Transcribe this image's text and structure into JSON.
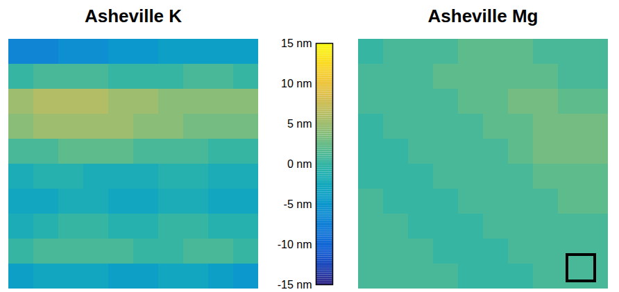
{
  "chart_data": {
    "type": "heatmap",
    "panels": [
      {
        "title": "Asheville K",
        "cells": [
          [
            -7,
            -7,
            -6,
            -6,
            -5,
            -5,
            -4,
            -4,
            -4,
            -4
          ],
          [
            0,
            1,
            1,
            1,
            0,
            0,
            0,
            1,
            1,
            0
          ],
          [
            5,
            6,
            6,
            6,
            5,
            5,
            4,
            4,
            4,
            4
          ],
          [
            4,
            5,
            5,
            5,
            5,
            4,
            4,
            3,
            3,
            3
          ],
          [
            1,
            1,
            2,
            2,
            2,
            1,
            1,
            1,
            0,
            0
          ],
          [
            -2,
            -1,
            -1,
            -2,
            -2,
            -2,
            -1,
            -1,
            -2,
            -2
          ],
          [
            -3,
            -3,
            -2,
            -2,
            -3,
            -3,
            -2,
            -2,
            -3,
            -3
          ],
          [
            -2,
            -1,
            0,
            0,
            -1,
            -1,
            0,
            0,
            -1,
            -1
          ],
          [
            0,
            1,
            1,
            1,
            1,
            0,
            0,
            1,
            1,
            0
          ],
          [
            -4,
            -3,
            -3,
            -3,
            -4,
            -4,
            -3,
            -3,
            -4,
            -5
          ]
        ]
      },
      {
        "title": "Asheville Mg",
        "cells": [
          [
            0,
            1,
            1,
            1,
            2,
            2,
            2,
            1,
            1,
            1
          ],
          [
            1,
            1,
            1,
            2,
            2,
            2,
            2,
            2,
            1,
            1
          ],
          [
            1,
            1,
            1,
            1,
            2,
            2,
            3,
            3,
            2,
            2
          ],
          [
            0,
            1,
            1,
            1,
            1,
            2,
            2,
            3,
            3,
            3
          ],
          [
            0,
            0,
            1,
            1,
            1,
            1,
            2,
            3,
            3,
            3
          ],
          [
            0,
            0,
            0,
            1,
            1,
            1,
            1,
            2,
            2,
            2
          ],
          [
            1,
            0,
            0,
            0,
            1,
            1,
            1,
            1,
            2,
            2
          ],
          [
            1,
            1,
            0,
            0,
            0,
            1,
            1,
            1,
            1,
            1
          ],
          [
            1,
            1,
            1,
            0,
            0,
            0,
            1,
            1,
            1,
            1
          ],
          [
            1,
            1,
            1,
            1,
            0,
            0,
            0,
            1,
            1,
            1
          ]
        ]
      }
    ],
    "colorbar": {
      "range": [
        -15,
        15
      ],
      "ticks": [
        {
          "value": -15,
          "label": "-15 nm"
        },
        {
          "value": -10,
          "label": "-10 nm"
        },
        {
          "value": -5,
          "label": "-5 nm"
        },
        {
          "value": 0,
          "label": "0 nm"
        },
        {
          "value": 5,
          "label": "5 nm"
        },
        {
          "value": 10,
          "label": "10 nm"
        },
        {
          "value": 15,
          "label": "15 nm"
        }
      ]
    },
    "tick_labels": false
  }
}
